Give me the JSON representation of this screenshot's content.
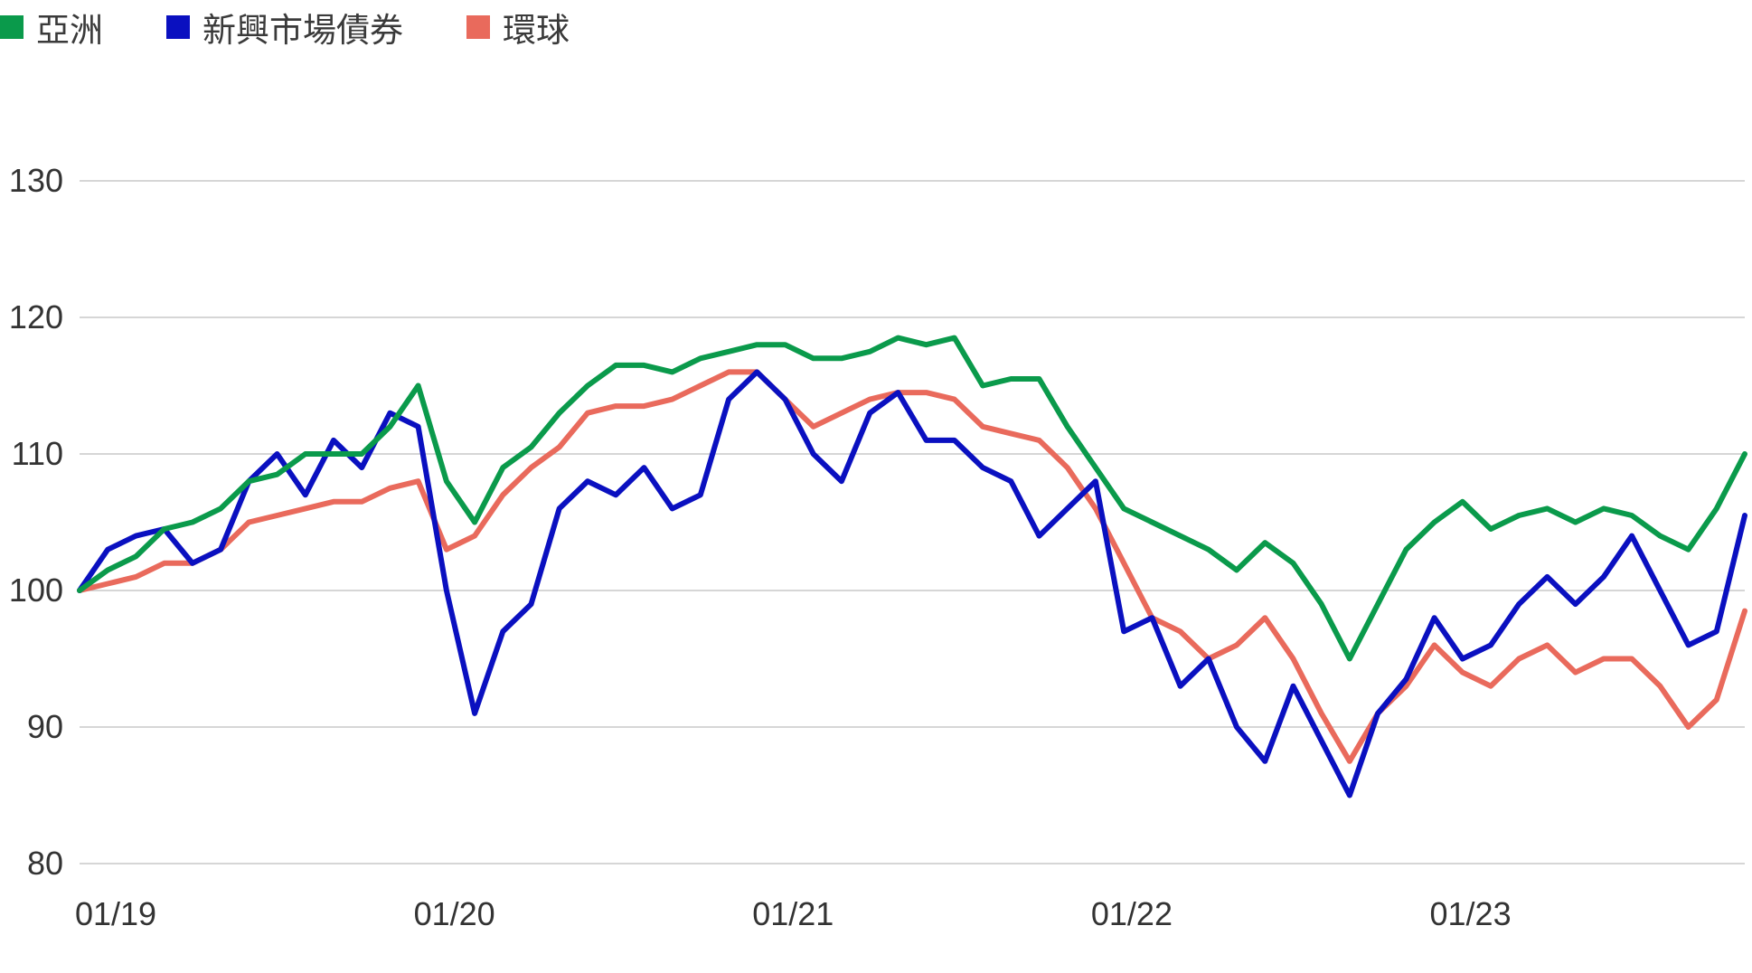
{
  "chart_data": {
    "type": "line",
    "title": "",
    "xlabel": "",
    "ylabel": "",
    "x_ticks": [
      "01/19",
      "01/20",
      "01/21",
      "01/22",
      "01/23"
    ],
    "y_ticks": [
      "130",
      "120",
      "110",
      "100",
      "90",
      "80"
    ],
    "ylim": [
      80,
      130
    ],
    "xlim": [
      "2019-01",
      "2023-12"
    ],
    "grid": true,
    "legend_position": "top-left",
    "series": [
      {
        "name": "亞洲",
        "color": "#0a9a4b",
        "points": [
          [
            "2019-01",
            100
          ],
          [
            "2019-02",
            101.5
          ],
          [
            "2019-03",
            102.5
          ],
          [
            "2019-04",
            104.5
          ],
          [
            "2019-05",
            105
          ],
          [
            "2019-06",
            106
          ],
          [
            "2019-07",
            108
          ],
          [
            "2019-08",
            108.5
          ],
          [
            "2019-09",
            110
          ],
          [
            "2019-10",
            110
          ],
          [
            "2019-11",
            110
          ],
          [
            "2019-12",
            112
          ],
          [
            "2020-01",
            115
          ],
          [
            "2020-02",
            108
          ],
          [
            "2020-03",
            105
          ],
          [
            "2020-04",
            109
          ],
          [
            "2020-05",
            110.5
          ],
          [
            "2020-06",
            113
          ],
          [
            "2020-07",
            115
          ],
          [
            "2020-08",
            116.5
          ],
          [
            "2020-09",
            116.5
          ],
          [
            "2020-10",
            116
          ],
          [
            "2020-11",
            117
          ],
          [
            "2020-12",
            117.5
          ],
          [
            "2021-01",
            118
          ],
          [
            "2021-02",
            118
          ],
          [
            "2021-03",
            117
          ],
          [
            "2021-04",
            117
          ],
          [
            "2021-05",
            117.5
          ],
          [
            "2021-06",
            118.5
          ],
          [
            "2021-07",
            118
          ],
          [
            "2021-08",
            118.5
          ],
          [
            "2021-09",
            115
          ],
          [
            "2021-10",
            115.5
          ],
          [
            "2021-11",
            115.5
          ],
          [
            "2021-12",
            112
          ],
          [
            "2022-01",
            109
          ],
          [
            "2022-02",
            106
          ],
          [
            "2022-03",
            105
          ],
          [
            "2022-04",
            104
          ],
          [
            "2022-05",
            103
          ],
          [
            "2022-06",
            101.5
          ],
          [
            "2022-07",
            103.5
          ],
          [
            "2022-08",
            102
          ],
          [
            "2022-09",
            99
          ],
          [
            "2022-10",
            95
          ],
          [
            "2022-11",
            99
          ],
          [
            "2022-12",
            103
          ],
          [
            "2023-01",
            105
          ],
          [
            "2023-02",
            106.5
          ],
          [
            "2023-03",
            104.5
          ],
          [
            "2023-04",
            105.5
          ],
          [
            "2023-05",
            106
          ],
          [
            "2023-06",
            105
          ],
          [
            "2023-07",
            106
          ],
          [
            "2023-08",
            105.5
          ],
          [
            "2023-09",
            104
          ],
          [
            "2023-10",
            103
          ],
          [
            "2023-11",
            106
          ],
          [
            "2023-12",
            110
          ]
        ]
      },
      {
        "name": "新興市場債券",
        "color": "#0a10c0",
        "points": [
          [
            "2019-01",
            100
          ],
          [
            "2019-02",
            103
          ],
          [
            "2019-03",
            104
          ],
          [
            "2019-04",
            104.5
          ],
          [
            "2019-05",
            102
          ],
          [
            "2019-06",
            103
          ],
          [
            "2019-07",
            108
          ],
          [
            "2019-08",
            110
          ],
          [
            "2019-09",
            107
          ],
          [
            "2019-10",
            111
          ],
          [
            "2019-11",
            109
          ],
          [
            "2019-12",
            113
          ],
          [
            "2020-01",
            112
          ],
          [
            "2020-02",
            100
          ],
          [
            "2020-03",
            91
          ],
          [
            "2020-04",
            97
          ],
          [
            "2020-05",
            99
          ],
          [
            "2020-06",
            106
          ],
          [
            "2020-07",
            108
          ],
          [
            "2020-08",
            107
          ],
          [
            "2020-09",
            109
          ],
          [
            "2020-10",
            106
          ],
          [
            "2020-11",
            107
          ],
          [
            "2020-12",
            114
          ],
          [
            "2021-01",
            116
          ],
          [
            "2021-02",
            114
          ],
          [
            "2021-03",
            110
          ],
          [
            "2021-04",
            108
          ],
          [
            "2021-05",
            113
          ],
          [
            "2021-06",
            114.5
          ],
          [
            "2021-07",
            111
          ],
          [
            "2021-08",
            111
          ],
          [
            "2021-09",
            109
          ],
          [
            "2021-10",
            108
          ],
          [
            "2021-11",
            104
          ],
          [
            "2021-12",
            106
          ],
          [
            "2022-01",
            108
          ],
          [
            "2022-02",
            97
          ],
          [
            "2022-03",
            98
          ],
          [
            "2022-04",
            93
          ],
          [
            "2022-05",
            95
          ],
          [
            "2022-06",
            90
          ],
          [
            "2022-07",
            87.5
          ],
          [
            "2022-08",
            93
          ],
          [
            "2022-09",
            89
          ],
          [
            "2022-10",
            85
          ],
          [
            "2022-11",
            91
          ],
          [
            "2022-12",
            93.5
          ],
          [
            "2023-01",
            98
          ],
          [
            "2023-02",
            95
          ],
          [
            "2023-03",
            96
          ],
          [
            "2023-04",
            99
          ],
          [
            "2023-05",
            101
          ],
          [
            "2023-06",
            99
          ],
          [
            "2023-07",
            101
          ],
          [
            "2023-08",
            104
          ],
          [
            "2023-09",
            100
          ],
          [
            "2023-10",
            96
          ],
          [
            "2023-11",
            97
          ],
          [
            "2023-12",
            105.5
          ]
        ]
      },
      {
        "name": "環球",
        "color": "#e96a5c",
        "points": [
          [
            "2019-01",
            100
          ],
          [
            "2019-02",
            100.5
          ],
          [
            "2019-03",
            101
          ],
          [
            "2019-04",
            102
          ],
          [
            "2019-05",
            102
          ],
          [
            "2019-06",
            103
          ],
          [
            "2019-07",
            105
          ],
          [
            "2019-08",
            105.5
          ],
          [
            "2019-09",
            106
          ],
          [
            "2019-10",
            106.5
          ],
          [
            "2019-11",
            106.5
          ],
          [
            "2019-12",
            107.5
          ],
          [
            "2020-01",
            108
          ],
          [
            "2020-02",
            103
          ],
          [
            "2020-03",
            104
          ],
          [
            "2020-04",
            107
          ],
          [
            "2020-05",
            109
          ],
          [
            "2020-06",
            110.5
          ],
          [
            "2020-07",
            113
          ],
          [
            "2020-08",
            113.5
          ],
          [
            "2020-09",
            113.5
          ],
          [
            "2020-10",
            114
          ],
          [
            "2020-11",
            115
          ],
          [
            "2020-12",
            116
          ],
          [
            "2021-01",
            116
          ],
          [
            "2021-02",
            114
          ],
          [
            "2021-03",
            112
          ],
          [
            "2021-04",
            113
          ],
          [
            "2021-05",
            114
          ],
          [
            "2021-06",
            114.5
          ],
          [
            "2021-07",
            114.5
          ],
          [
            "2021-08",
            114
          ],
          [
            "2021-09",
            112
          ],
          [
            "2021-10",
            111.5
          ],
          [
            "2021-11",
            111
          ],
          [
            "2021-12",
            109
          ],
          [
            "2022-01",
            106
          ],
          [
            "2022-02",
            102
          ],
          [
            "2022-03",
            98
          ],
          [
            "2022-04",
            97
          ],
          [
            "2022-05",
            95
          ],
          [
            "2022-06",
            96
          ],
          [
            "2022-07",
            98
          ],
          [
            "2022-08",
            95
          ],
          [
            "2022-09",
            91
          ],
          [
            "2022-10",
            87.5
          ],
          [
            "2022-11",
            91
          ],
          [
            "2022-12",
            93
          ],
          [
            "2023-01",
            96
          ],
          [
            "2023-02",
            94
          ],
          [
            "2023-03",
            93
          ],
          [
            "2023-04",
            95
          ],
          [
            "2023-05",
            96
          ],
          [
            "2023-06",
            94
          ],
          [
            "2023-07",
            95
          ],
          [
            "2023-08",
            95
          ],
          [
            "2023-09",
            93
          ],
          [
            "2023-10",
            90
          ],
          [
            "2023-11",
            92
          ],
          [
            "2023-12",
            98.5
          ]
        ]
      }
    ]
  }
}
